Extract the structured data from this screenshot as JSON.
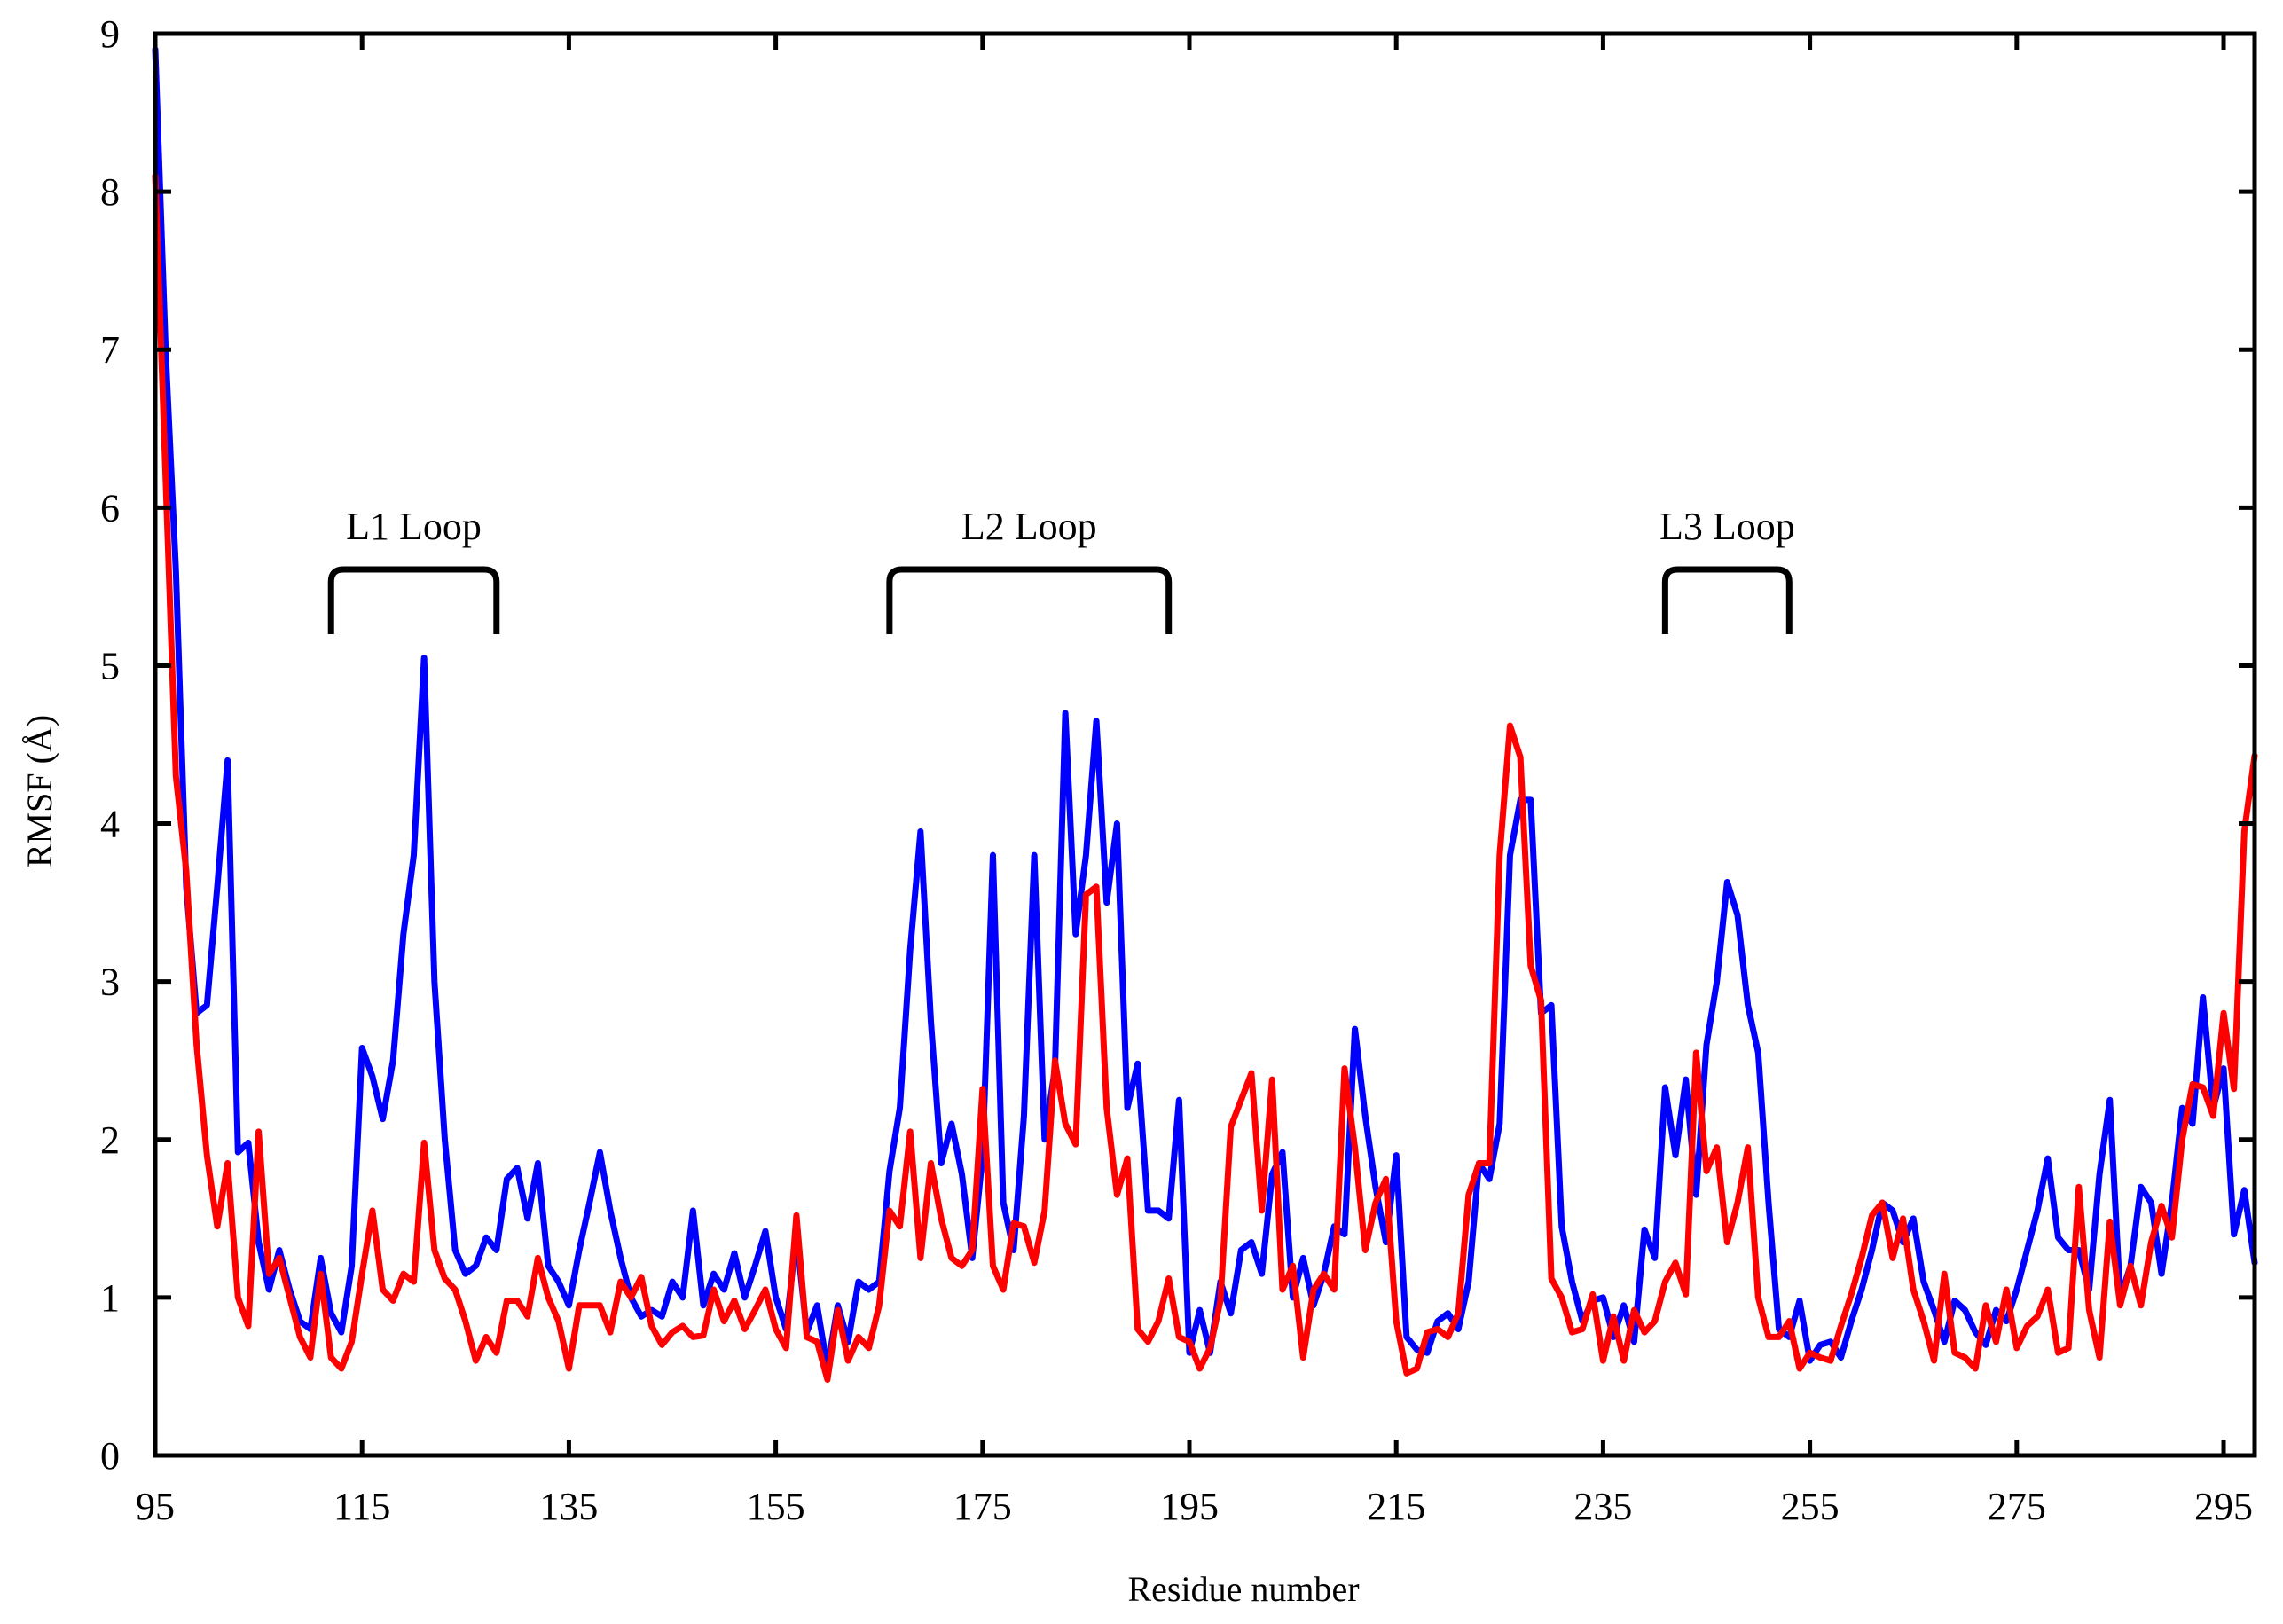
{
  "chart_data": {
    "type": "line",
    "xlabel": "Residue number",
    "ylabel": "RMSF (Å)",
    "xlim": [
      95,
      298
    ],
    "ylim": [
      0,
      9
    ],
    "xticks": [
      95,
      115,
      135,
      155,
      175,
      195,
      215,
      235,
      255,
      275,
      295
    ],
    "yticks": [
      0,
      1,
      2,
      3,
      4,
      5,
      6,
      7,
      8,
      9
    ],
    "grid": false,
    "legend": "none",
    "series": [
      {
        "color": "#0000ff",
        "x_start": 95,
        "values": [
          8.9,
          7.0,
          5.6,
          3.6,
          2.8,
          2.85,
          3.6,
          4.4,
          1.92,
          1.98,
          1.35,
          1.05,
          1.3,
          1.05,
          0.85,
          0.8,
          1.25,
          0.9,
          0.78,
          1.2,
          2.58,
          2.4,
          2.13,
          2.5,
          3.3,
          3.8,
          5.05,
          3.0,
          2.0,
          1.3,
          1.15,
          1.2,
          1.38,
          1.3,
          1.75,
          1.82,
          1.5,
          1.85,
          1.2,
          1.1,
          0.95,
          1.3,
          1.6,
          1.92,
          1.55,
          1.25,
          1.0,
          0.88,
          0.92,
          0.88,
          1.1,
          1.0,
          1.55,
          0.95,
          1.15,
          1.05,
          1.28,
          1.0,
          1.2,
          1.42,
          1.0,
          0.8,
          1.4,
          0.78,
          0.95,
          0.55,
          0.95,
          0.72,
          1.1,
          1.05,
          1.1,
          1.8,
          2.2,
          3.2,
          3.95,
          2.75,
          1.85,
          2.1,
          1.78,
          1.25,
          1.9,
          3.8,
          1.6,
          1.3,
          2.15,
          3.8,
          2.0,
          2.45,
          4.7,
          3.3,
          3.8,
          4.65,
          3.5,
          4.0,
          2.2,
          2.48,
          1.55,
          1.55,
          1.5,
          2.25,
          0.65,
          0.92,
          0.65,
          1.1,
          0.9,
          1.3,
          1.35,
          1.15,
          1.78,
          1.92,
          1.0,
          1.25,
          0.95,
          1.15,
          1.45,
          1.4,
          2.7,
          2.15,
          1.7,
          1.35,
          1.9,
          0.75,
          0.67,
          0.65,
          0.85,
          0.9,
          0.8,
          1.1,
          1.85,
          1.75,
          2.1,
          3.8,
          4.15,
          4.15,
          2.8,
          2.85,
          1.45,
          1.1,
          0.85,
          0.98,
          1.0,
          0.75,
          0.95,
          0.72,
          1.43,
          1.25,
          2.33,
          1.9,
          2.38,
          1.65,
          2.6,
          3.0,
          3.63,
          3.42,
          2.85,
          2.55,
          1.6,
          0.8,
          0.75,
          0.98,
          0.6,
          0.7,
          0.72,
          0.62,
          0.85,
          1.05,
          1.3,
          1.6,
          1.55,
          1.35,
          1.5,
          1.1,
          0.92,
          0.72,
          0.98,
          0.92,
          0.78,
          0.7,
          0.92,
          0.85,
          1.05,
          1.3,
          1.55,
          1.88,
          1.38,
          1.3,
          1.3,
          1.05,
          1.78,
          2.25,
          1.0,
          1.2,
          1.7,
          1.6,
          1.15,
          1.6,
          2.2,
          2.1,
          2.9,
          2.2,
          2.45,
          1.4,
          1.68,
          1.22
        ]
      },
      {
        "color": "#ff0000",
        "x_start": 95,
        "values": [
          8.1,
          6.2,
          4.3,
          3.7,
          2.6,
          1.9,
          1.45,
          1.85,
          1.0,
          0.82,
          2.05,
          1.15,
          1.25,
          1.0,
          0.75,
          0.62,
          1.15,
          0.62,
          0.55,
          0.72,
          1.15,
          1.55,
          1.05,
          0.98,
          1.15,
          1.1,
          1.98,
          1.3,
          1.12,
          1.05,
          0.85,
          0.6,
          0.75,
          0.65,
          0.98,
          0.98,
          0.88,
          1.25,
          1.0,
          0.85,
          0.55,
          0.95,
          0.95,
          0.95,
          0.78,
          1.1,
          1.0,
          1.13,
          0.82,
          0.7,
          0.78,
          0.82,
          0.75,
          0.76,
          1.05,
          0.85,
          0.98,
          0.8,
          0.92,
          1.05,
          0.8,
          0.68,
          1.52,
          0.75,
          0.72,
          0.48,
          0.92,
          0.6,
          0.75,
          0.68,
          0.95,
          1.55,
          1.45,
          2.05,
          1.25,
          1.85,
          1.5,
          1.25,
          1.2,
          1.3,
          2.32,
          1.2,
          1.05,
          1.47,
          1.45,
          1.22,
          1.55,
          2.5,
          2.1,
          1.97,
          3.55,
          3.6,
          2.2,
          1.65,
          1.88,
          0.8,
          0.72,
          0.85,
          1.12,
          0.75,
          0.72,
          0.55,
          0.68,
          0.98,
          2.08,
          2.25,
          2.42,
          1.55,
          2.38,
          1.05,
          1.2,
          0.62,
          1.05,
          1.15,
          1.05,
          2.45,
          1.95,
          1.3,
          1.6,
          1.75,
          0.85,
          0.52,
          0.55,
          0.78,
          0.8,
          0.75,
          0.9,
          1.65,
          1.85,
          1.85,
          3.8,
          4.62,
          4.42,
          3.1,
          2.88,
          1.12,
          1.0,
          0.78,
          0.8,
          1.02,
          0.6,
          0.88,
          0.6,
          0.92,
          0.78,
          0.85,
          1.1,
          1.22,
          1.02,
          2.55,
          1.8,
          1.95,
          1.35,
          1.6,
          1.95,
          1.0,
          0.75,
          0.75,
          0.85,
          0.55,
          0.65,
          0.62,
          0.6,
          0.82,
          1.02,
          1.25,
          1.52,
          1.6,
          1.25,
          1.5,
          1.05,
          0.85,
          0.6,
          1.15,
          0.65,
          0.62,
          0.55,
          0.95,
          0.72,
          1.05,
          0.68,
          0.82,
          0.88,
          1.05,
          0.65,
          0.68,
          1.7,
          0.92,
          0.62,
          1.48,
          0.95,
          1.2,
          0.95,
          1.35,
          1.58,
          1.38,
          2.0,
          2.35,
          2.33,
          2.15,
          2.8,
          2.32,
          3.95,
          4.43
        ]
      }
    ],
    "annotations": [
      {
        "label": "L1 Loop",
        "x_start": 112,
        "x_end": 128
      },
      {
        "label": "L2 Loop",
        "x_start": 166,
        "x_end": 193
      },
      {
        "label": "L3 Loop",
        "x_start": 241,
        "x_end": 253
      }
    ]
  }
}
